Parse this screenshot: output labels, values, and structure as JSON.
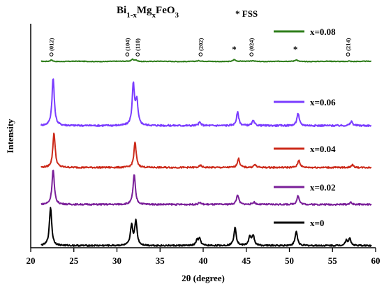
{
  "chart_data": {
    "type": "line",
    "title_parts": {
      "base": "Bi",
      "sub1": "1-x",
      "mid": "Mg",
      "sub2": "x",
      "tail": "FeO",
      "sub3": "3"
    },
    "marker_legend": "* FSS",
    "xlabel": "2θ (degree)",
    "ylabel": "Intensity",
    "xlim": [
      20,
      60
    ],
    "xticks": [
      "20",
      "25",
      "30",
      "35",
      "40",
      "45",
      "50",
      "55",
      "60"
    ],
    "grid": false,
    "series": [
      {
        "name": "x=0.08",
        "color": "#2e7d1a",
        "peaks": [
          [
            22.4,
            0.1
          ],
          [
            31.8,
            0.14
          ],
          [
            32.2,
            0.1
          ],
          [
            39.5,
            0.04
          ],
          [
            43.6,
            0.12
          ],
          [
            45.8,
            0.05
          ],
          [
            50.8,
            0.11
          ],
          [
            56.9,
            0.04
          ]
        ]
      },
      {
        "name": "x=0.06",
        "color": "#7a3cff",
        "peaks": [
          [
            22.6,
            1.0
          ],
          [
            31.9,
            0.85
          ],
          [
            32.3,
            0.5
          ],
          [
            39.6,
            0.07
          ],
          [
            44.0,
            0.28
          ],
          [
            45.8,
            0.1
          ],
          [
            51.0,
            0.26
          ],
          [
            57.2,
            0.09
          ]
        ]
      },
      {
        "name": "x=0.04",
        "color": "#cc2a1a",
        "peaks": [
          [
            22.7,
            0.86
          ],
          [
            32.1,
            0.62
          ],
          [
            39.7,
            0.05
          ],
          [
            44.1,
            0.22
          ],
          [
            46.0,
            0.07
          ],
          [
            51.1,
            0.18
          ],
          [
            57.3,
            0.06
          ]
        ]
      },
      {
        "name": "x=0.02",
        "color": "#7a1f99",
        "peaks": [
          [
            22.6,
            0.86
          ],
          [
            32.0,
            0.74
          ],
          [
            39.6,
            0.05
          ],
          [
            44.0,
            0.24
          ],
          [
            45.9,
            0.06
          ],
          [
            51.0,
            0.22
          ],
          [
            57.1,
            0.05
          ]
        ]
      },
      {
        "name": "x=0",
        "color": "#000000",
        "peaks": [
          [
            22.3,
            0.92
          ],
          [
            31.7,
            0.48
          ],
          [
            32.2,
            0.58
          ],
          [
            39.3,
            0.13
          ],
          [
            39.6,
            0.15
          ],
          [
            43.7,
            0.44
          ],
          [
            45.4,
            0.2
          ],
          [
            45.8,
            0.24
          ],
          [
            50.8,
            0.34
          ],
          [
            56.6,
            0.12
          ],
          [
            57.0,
            0.16
          ]
        ]
      }
    ],
    "peak_labels": [
      {
        "text": "(012)",
        "x": 22.4
      },
      {
        "text": "(104)",
        "x": 31.2
      },
      {
        "text": "(110)",
        "x": 32.4
      },
      {
        "text": "(202)",
        "x": 39.7
      },
      {
        "text": "(024)",
        "x": 45.6
      },
      {
        "text": "(214)",
        "x": 56.8
      }
    ],
    "fss_markers": [
      {
        "text": "*",
        "x": 43.6
      },
      {
        "text": "*",
        "x": 50.7
      }
    ]
  }
}
